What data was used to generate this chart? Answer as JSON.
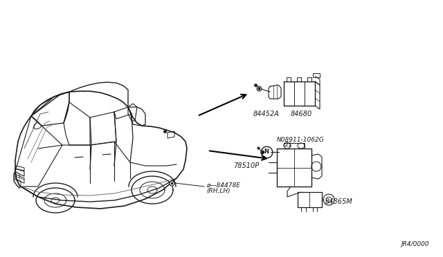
{
  "bg_color": "#ffffff",
  "line_color": "#1a1a1a",
  "diagram_ref": "JR4/0000",
  "parts": {
    "84452A": {
      "label": "84452A"
    },
    "84680": {
      "label": "84680"
    },
    "N08911": {
      "label": "N08911-1062G"
    },
    "N08911b": {
      "label": "(2)"
    },
    "78510P": {
      "label": "78510P"
    },
    "84365M": {
      "label": "84365M"
    },
    "84478E": {
      "label": "ø—84478E"
    },
    "84478Eb": {
      "label": "(RH,LH)"
    }
  }
}
